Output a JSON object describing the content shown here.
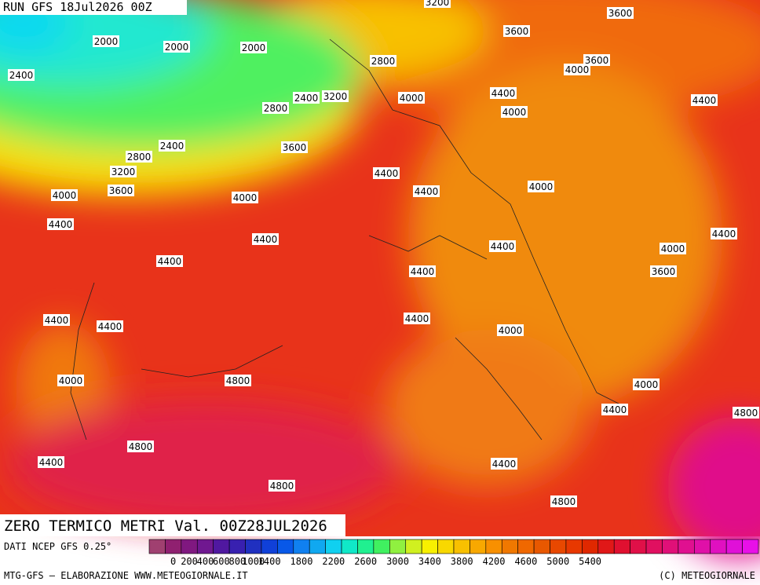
{
  "header": {
    "run": "RUN GFS 18Jul2026 00Z",
    "title": "ZERO TERMICO METRI Val. 00Z28JUL2026"
  },
  "contour_labels": [
    "3200",
    "3600",
    "3600",
    "2000",
    "2000",
    "2000",
    "2400",
    "2800",
    "3600",
    "4000",
    "4400",
    "4000",
    "2400",
    "3200",
    "2800",
    "4000",
    "4400",
    "3600",
    "2400",
    "2800",
    "3200",
    "4400",
    "3600",
    "4400",
    "4000",
    "4000",
    "4000",
    "4400",
    "4400",
    "4400",
    "4000",
    "4400",
    "4400",
    "4400",
    "3600",
    "4400",
    "4400",
    "4400",
    "4000",
    "4000",
    "4800",
    "4000",
    "4400",
    "4800",
    "4800",
    "4400",
    "4400",
    "4800",
    "4800"
  ],
  "legend": {
    "source": "DATI NCEP GFS 0.25°",
    "labels": [
      "0",
      "200",
      "400",
      "600",
      "800",
      "1000",
      "1400",
      "1800",
      "2200",
      "2600",
      "3000",
      "3400",
      "3800",
      "4200",
      "4600",
      "5000",
      "5400"
    ],
    "colors": [
      "#a04070",
      "#902070",
      "#801880",
      "#701890",
      "#5018a0",
      "#3820b0",
      "#2030c0",
      "#1040d8",
      "#0858e8",
      "#1080f0",
      "#10a8f0",
      "#10d0f0",
      "#10e8c8",
      "#20f090",
      "#40f060",
      "#90f040",
      "#d0f020",
      "#f8f000",
      "#f8d800",
      "#f8c000",
      "#f8a800",
      "#f89000",
      "#f07800",
      "#f06800",
      "#e85800",
      "#e84800",
      "#e83800",
      "#e02800",
      "#e01818",
      "#e01030",
      "#e01048",
      "#e01060",
      "#e01078",
      "#e01090",
      "#e010a8",
      "#e010c0",
      "#e010d8",
      "#e810e8"
    ]
  },
  "footer": {
    "credit": "MTG-GFS — ELABORAZIONE WWW.METEOGIORNALE.IT",
    "copyright": "(C) METEOGIORNALE"
  }
}
